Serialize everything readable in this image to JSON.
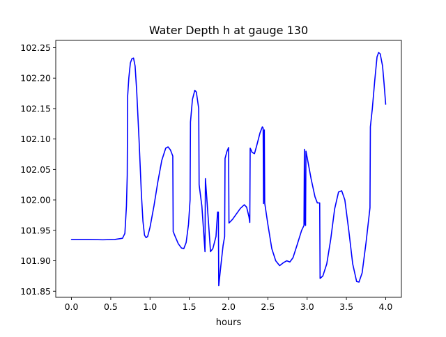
{
  "chart_data": {
    "type": "line",
    "title": "Water Depth h at gauge 130",
    "xlabel": "hours",
    "ylabel": "",
    "xlim": [
      -0.2,
      4.2
    ],
    "ylim": [
      101.84,
      102.262
    ],
    "x_ticks": [
      0.0,
      0.5,
      1.0,
      1.5,
      2.0,
      2.5,
      3.0,
      3.5,
      4.0
    ],
    "x_tick_labels": [
      "0.0",
      "0.5",
      "1.0",
      "1.5",
      "2.0",
      "2.5",
      "3.0",
      "3.5",
      "4.0"
    ],
    "y_ticks": [
      101.85,
      101.9,
      101.95,
      102.0,
      102.05,
      102.1,
      102.15,
      102.2,
      102.25
    ],
    "y_tick_labels": [
      "101.85",
      "101.90",
      "101.95",
      "102.00",
      "102.05",
      "102.10",
      "102.15",
      "102.20",
      "102.25"
    ],
    "grid": false,
    "legend": "none",
    "series": [
      {
        "name": "",
        "color": "#0000ff",
        "points": [
          [
            0.0,
            101.935
          ],
          [
            0.2,
            101.935
          ],
          [
            0.4,
            101.9345
          ],
          [
            0.55,
            101.935
          ],
          [
            0.65,
            101.937
          ],
          [
            0.68,
            101.945
          ],
          [
            0.7,
            101.99
          ],
          [
            0.71,
            102.04
          ],
          [
            0.715,
            102.17
          ],
          [
            0.73,
            102.2
          ],
          [
            0.75,
            102.225
          ],
          [
            0.77,
            102.232
          ],
          [
            0.79,
            102.233
          ],
          [
            0.81,
            102.22
          ],
          [
            0.83,
            102.18
          ],
          [
            0.86,
            102.1
          ],
          [
            0.89,
            102.01
          ],
          [
            0.91,
            101.965
          ],
          [
            0.93,
            101.942
          ],
          [
            0.95,
            101.938
          ],
          [
            0.97,
            101.94
          ],
          [
            1.0,
            101.955
          ],
          [
            1.05,
            101.99
          ],
          [
            1.1,
            102.03
          ],
          [
            1.15,
            102.065
          ],
          [
            1.2,
            102.085
          ],
          [
            1.23,
            102.087
          ],
          [
            1.26,
            102.082
          ],
          [
            1.29,
            102.072
          ],
          [
            1.295,
            101.948
          ],
          [
            1.32,
            101.94
          ],
          [
            1.36,
            101.928
          ],
          [
            1.4,
            101.921
          ],
          [
            1.43,
            101.92
          ],
          [
            1.46,
            101.93
          ],
          [
            1.49,
            101.96
          ],
          [
            1.51,
            102.0
          ],
          [
            1.515,
            102.128
          ],
          [
            1.54,
            102.165
          ],
          [
            1.57,
            102.18
          ],
          [
            1.59,
            102.177
          ],
          [
            1.62,
            102.15
          ],
          [
            1.625,
            102.025
          ],
          [
            1.66,
            101.99
          ],
          [
            1.7,
            101.915
          ],
          [
            1.705,
            102.035
          ],
          [
            1.73,
            101.99
          ],
          [
            1.77,
            101.915
          ],
          [
            1.8,
            101.92
          ],
          [
            1.84,
            101.94
          ],
          [
            1.86,
            101.98
          ],
          [
            1.87,
            101.98
          ],
          [
            1.875,
            101.859
          ],
          [
            1.9,
            101.89
          ],
          [
            1.93,
            101.925
          ],
          [
            1.95,
            101.94
          ],
          [
            1.955,
            102.068
          ],
          [
            1.98,
            102.08
          ],
          [
            2.0,
            102.086
          ],
          [
            2.005,
            101.962
          ],
          [
            2.05,
            101.968
          ],
          [
            2.1,
            101.977
          ],
          [
            2.15,
            101.986
          ],
          [
            2.2,
            101.992
          ],
          [
            2.23,
            101.988
          ],
          [
            2.26,
            101.972
          ],
          [
            2.27,
            101.963
          ],
          [
            2.275,
            102.085
          ],
          [
            2.3,
            102.078
          ],
          [
            2.33,
            102.076
          ],
          [
            2.36,
            102.09
          ],
          [
            2.4,
            102.11
          ],
          [
            2.43,
            102.12
          ],
          [
            2.44,
            102.118
          ],
          [
            2.445,
            101.994
          ],
          [
            2.455,
            102.115
          ],
          [
            2.46,
            101.995
          ],
          [
            2.5,
            101.96
          ],
          [
            2.55,
            101.92
          ],
          [
            2.6,
            101.9
          ],
          [
            2.65,
            101.892
          ],
          [
            2.7,
            101.897
          ],
          [
            2.74,
            101.9
          ],
          [
            2.78,
            101.898
          ],
          [
            2.82,
            101.905
          ],
          [
            2.87,
            101.925
          ],
          [
            2.93,
            101.95
          ],
          [
            2.96,
            101.958
          ],
          [
            2.965,
            102.083
          ],
          [
            2.975,
            101.96
          ],
          [
            2.98,
            101.958
          ],
          [
            2.985,
            102.08
          ],
          [
            3.0,
            102.07
          ],
          [
            3.05,
            102.035
          ],
          [
            3.1,
            102.005
          ],
          [
            3.13,
            101.995
          ],
          [
            3.16,
            101.995
          ],
          [
            3.165,
            101.871
          ],
          [
            3.2,
            101.875
          ],
          [
            3.25,
            101.895
          ],
          [
            3.3,
            101.935
          ],
          [
            3.35,
            101.985
          ],
          [
            3.4,
            102.013
          ],
          [
            3.44,
            102.015
          ],
          [
            3.48,
            102.0
          ],
          [
            3.53,
            101.95
          ],
          [
            3.58,
            101.895
          ],
          [
            3.63,
            101.866
          ],
          [
            3.66,
            101.865
          ],
          [
            3.7,
            101.88
          ],
          [
            3.75,
            101.93
          ],
          [
            3.8,
            101.987
          ],
          [
            3.805,
            102.12
          ],
          [
            3.83,
            102.15
          ],
          [
            3.86,
            102.195
          ],
          [
            3.89,
            102.235
          ],
          [
            3.91,
            102.242
          ],
          [
            3.93,
            102.24
          ],
          [
            3.96,
            102.22
          ],
          [
            3.98,
            102.19
          ],
          [
            4.0,
            102.157
          ]
        ]
      }
    ]
  }
}
